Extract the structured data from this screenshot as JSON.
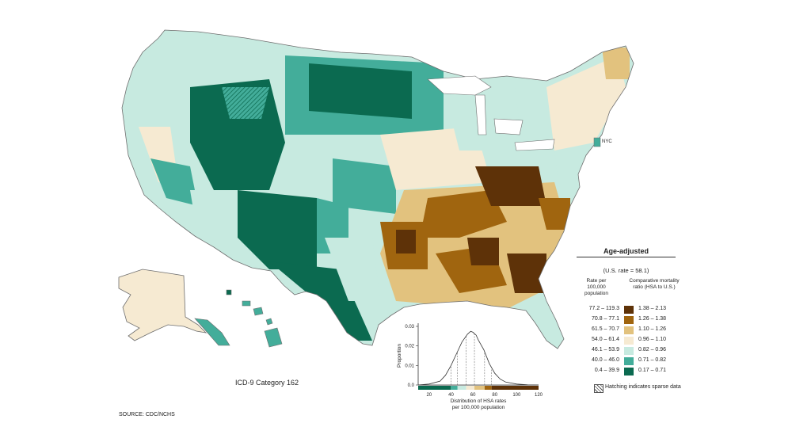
{
  "category_label": "ICD-9 Category 162",
  "source_label": "SOURCE: CDC/NCHS",
  "nyc_label": "NYC",
  "legend": {
    "title": "Age-adjusted",
    "us_rate": "(U.S. rate = 58.1)",
    "rate_header": "Rate per 100,000 population",
    "ratio_header": "Comparative mortality ratio (HSA to U.S.)",
    "rows": [
      {
        "rate": "77.2 – 119.3",
        "ratio": "1.38 – 2.13",
        "color": "#5e3208"
      },
      {
        "rate": "70.8 – 77.1",
        "ratio": "1.26 – 1.38",
        "color": "#a0650f"
      },
      {
        "rate": "61.5 – 70.7",
        "ratio": "1.10 – 1.26",
        "color": "#e2c27e"
      },
      {
        "rate": "54.0 – 61.4",
        "ratio": "0.96 – 1.10",
        "color": "#f6ead2"
      },
      {
        "rate": "46.1 – 53.9",
        "ratio": "0.82 – 0.96",
        "color": "#c7eae0"
      },
      {
        "rate": "40.0 – 46.0",
        "ratio": "0.71 – 0.82",
        "color": "#43ad9a"
      },
      {
        "rate": "0.4 – 39.9",
        "ratio": "0.17 – 0.71",
        "color": "#0b6a50"
      }
    ],
    "hatch_note": "Hatching indicates sparse data"
  },
  "distribution": {
    "ylabel": "Proportion",
    "xlabel": "Distribution of HSA rates per 100,000 population",
    "y_ticks": [
      "0.03",
      "0.02",
      "0.01",
      "0.0"
    ],
    "x_ticks": [
      "20",
      "40",
      "60",
      "80",
      "100",
      "120"
    ]
  },
  "chart_data": {
    "type": "area",
    "title": "",
    "xlabel": "Distribution of HSA rates per 100,000 population",
    "ylabel": "Proportion",
    "xlim": [
      10,
      120
    ],
    "ylim": [
      0,
      0.03
    ],
    "x": [
      10,
      20,
      30,
      35,
      40,
      45,
      50,
      55,
      58,
      60,
      63,
      65,
      70,
      75,
      80,
      85,
      90,
      100,
      110,
      120
    ],
    "y": [
      0.0,
      0.0005,
      0.002,
      0.005,
      0.01,
      0.016,
      0.022,
      0.026,
      0.0275,
      0.027,
      0.0255,
      0.023,
      0.018,
      0.011,
      0.006,
      0.003,
      0.0015,
      0.0005,
      0.0001,
      0.0
    ],
    "series": [
      {
        "values": [
          0.0,
          0.0005,
          0.002,
          0.005,
          0.01,
          0.016,
          0.022,
          0.026,
          0.0275,
          0.027,
          0.0255,
          0.023,
          0.018,
          0.011,
          0.006,
          0.003,
          0.0015,
          0.0005,
          0.0001,
          0.0
        ]
      }
    ],
    "class_breaks": [
      39.9,
      46.0,
      53.9,
      61.4,
      70.7,
      77.1
    ],
    "grid": false
  }
}
